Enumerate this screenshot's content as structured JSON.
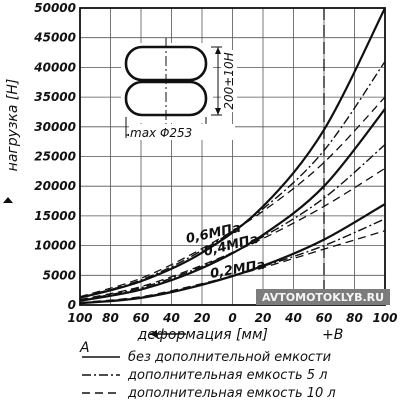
{
  "chart_data": {
    "type": "line",
    "title": "",
    "ylabel": "нагрузка [Н]",
    "xlabel": "деформация [мм]",
    "xlabel_suffix": "+В",
    "x_left_end_label": "A",
    "x_ticks": [
      "100",
      "80",
      "60",
      "40",
      "20",
      "0",
      "20",
      "40",
      "60",
      "80",
      "100"
    ],
    "x_values": [
      -100,
      -80,
      -60,
      -40,
      -20,
      0,
      20,
      40,
      60,
      80,
      100
    ],
    "y_ticks": [
      "50000",
      "45000",
      "40000",
      "35000",
      "30000",
      "25000",
      "20000",
      "15000",
      "10000",
      "5000",
      "0"
    ],
    "y_values": [
      50000,
      45000,
      40000,
      35000,
      30000,
      25000,
      20000,
      15000,
      10000,
      5000,
      0
    ],
    "xlim": [
      -100,
      100
    ],
    "ylim": [
      0,
      50000
    ],
    "grid": true,
    "vertical_dashed_at": [
      60
    ],
    "pressure_labels": [
      "0,6МПа",
      "0,4МПа",
      "0,2МПа"
    ],
    "series": [
      {
        "group": "0,6МПа",
        "style": "solid",
        "x": [
          -100,
          -60,
          -20,
          20,
          60,
          100
        ],
        "y": [
          1200,
          4000,
          8800,
          16600,
          29500,
          50000
        ]
      },
      {
        "group": "0,6МПа",
        "style": "dashdot",
        "x": [
          -100,
          -60,
          -20,
          20,
          60,
          100
        ],
        "y": [
          1300,
          4200,
          9200,
          16200,
          26000,
          41000
        ]
      },
      {
        "group": "0,6МПа",
        "style": "dashed",
        "x": [
          -100,
          -60,
          -20,
          20,
          60,
          100
        ],
        "y": [
          1400,
          4500,
          9500,
          15800,
          24000,
          35000
        ]
      },
      {
        "group": "0,4МПа",
        "style": "solid",
        "x": [
          -100,
          -60,
          -20,
          20,
          60,
          100
        ],
        "y": [
          700,
          2600,
          6200,
          11800,
          20000,
          33000
        ]
      },
      {
        "group": "0,4МПа",
        "style": "dashdot",
        "x": [
          -100,
          -60,
          -20,
          20,
          60,
          100
        ],
        "y": [
          800,
          2900,
          6500,
          11500,
          18000,
          27000
        ]
      },
      {
        "group": "0,4МПа",
        "style": "dashed",
        "x": [
          -100,
          -60,
          -20,
          20,
          60,
          100
        ],
        "y": [
          900,
          3100,
          6700,
          11200,
          16600,
          23000
        ]
      },
      {
        "group": "0,2МПа",
        "style": "solid",
        "x": [
          -100,
          -60,
          -20,
          20,
          60,
          100
        ],
        "y": [
          300,
          1200,
          3400,
          6600,
          11000,
          17000
        ]
      },
      {
        "group": "0,2МПа",
        "style": "dashdot",
        "x": [
          -100,
          -60,
          -20,
          20,
          60,
          100
        ],
        "y": [
          350,
          1300,
          3500,
          6500,
          10000,
          14500
        ]
      },
      {
        "group": "0,2МПа",
        "style": "dashed",
        "x": [
          -100,
          -60,
          -20,
          20,
          60,
          100
        ],
        "y": [
          400,
          1400,
          3600,
          6300,
          9400,
          12500
        ]
      }
    ],
    "legend": [
      {
        "style": "solid",
        "label": "без дополнительной емкости"
      },
      {
        "style": "dashdot",
        "label": "дополнительная емкость 5 л"
      },
      {
        "style": "dashed",
        "label": "дополнительная емкость 10 л"
      }
    ],
    "inset": {
      "height_label": "200±10Н",
      "diameter_label": "max Φ253"
    },
    "watermark": "AVTOMOTOKLYB.RU"
  }
}
